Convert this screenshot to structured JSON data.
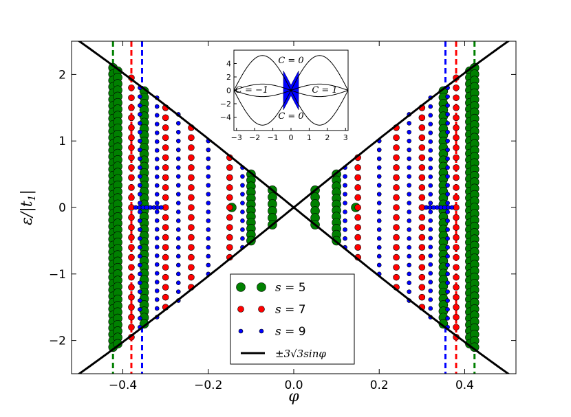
{
  "chart_data": [
    {
      "type": "scatter",
      "title": "",
      "xlabel": "φ",
      "ylabel": "ε/|t1|",
      "xlim": [
        -0.52,
        0.52
      ],
      "ylim": [
        -2.5,
        2.5
      ],
      "xticks": [
        -0.4,
        -0.2,
        0.0,
        0.2,
        0.4
      ],
      "xtick_labels": [
        "−0.4",
        "−0.2",
        "0.0",
        "0.2",
        "0.4"
      ],
      "yticks": [
        -2,
        -1,
        0,
        1,
        2
      ],
      "ytick_labels": [
        "−2",
        "−1",
        "0",
        "1",
        "2"
      ],
      "grid": false,
      "legend_position": "lower-center",
      "series": [
        {
          "name": "s = 5",
          "color": "#008000",
          "marker": "large-circle",
          "columns": [
            {
              "x": -0.423,
              "y_range": [
                -2.1,
                2.1
              ]
            },
            {
              "x": -0.412,
              "y_range": [
                -2.05,
                2.05
              ]
            },
            {
              "x": -0.35,
              "y_range": [
                -1.75,
                1.75
              ]
            },
            {
              "x": -0.1,
              "y_range": [
                -0.5,
                0.5
              ]
            },
            {
              "x": -0.05,
              "y_range": [
                -0.26,
                0.26
              ]
            },
            {
              "x": 0.05,
              "y_range": [
                -0.26,
                0.26
              ]
            },
            {
              "x": 0.1,
              "y_range": [
                -0.5,
                0.5
              ]
            },
            {
              "x": 0.35,
              "y_range": [
                -1.75,
                1.75
              ]
            },
            {
              "x": 0.412,
              "y_range": [
                -2.05,
                2.05
              ]
            },
            {
              "x": 0.423,
              "y_range": [
                -2.1,
                2.1
              ]
            }
          ],
          "isolated_points": [
            {
              "x": -0.145,
              "y": 0
            },
            {
              "x": 0.145,
              "y": 0
            }
          ]
        },
        {
          "name": "s = 7",
          "color": "#ff0000",
          "marker": "medium-circle",
          "columns": [
            {
              "x": -0.38,
              "y_range": [
                -1.95,
                1.95
              ]
            },
            {
              "x": -0.3,
              "y_range": [
                -1.5,
                1.5
              ]
            },
            {
              "x": -0.24,
              "y_range": [
                -1.2,
                1.2
              ]
            },
            {
              "x": -0.15,
              "y_range": [
                -0.75,
                0.75
              ]
            },
            {
              "x": 0.15,
              "y_range": [
                -0.75,
                0.75
              ]
            },
            {
              "x": 0.24,
              "y_range": [
                -1.2,
                1.2
              ]
            },
            {
              "x": 0.3,
              "y_range": [
                -1.5,
                1.5
              ]
            },
            {
              "x": 0.38,
              "y_range": [
                -1.95,
                1.95
              ]
            }
          ]
        },
        {
          "name": "s = 9",
          "color": "#0000ff",
          "marker": "small-circle",
          "columns": [
            {
              "x": -0.36,
              "y_range": [
                -1.8,
                1.8
              ]
            },
            {
              "x": -0.32,
              "y_range": [
                -1.65,
                1.65
              ]
            },
            {
              "x": -0.27,
              "y_range": [
                -1.4,
                1.4
              ]
            },
            {
              "x": -0.2,
              "y_range": [
                -1.0,
                1.0
              ]
            },
            {
              "x": -0.12,
              "y_range": [
                -0.6,
                0.6
              ]
            },
            {
              "x": 0.12,
              "y_range": [
                -0.6,
                0.6
              ]
            },
            {
              "x": 0.2,
              "y_range": [
                -1.0,
                1.0
              ]
            },
            {
              "x": 0.27,
              "y_range": [
                -1.4,
                1.4
              ]
            },
            {
              "x": 0.32,
              "y_range": [
                -1.65,
                1.65
              ]
            },
            {
              "x": 0.36,
              "y_range": [
                -1.8,
                1.8
              ]
            }
          ],
          "horizontal_segments": [
            {
              "x_range": [
                -0.37,
                -0.31
              ],
              "y": 0
            },
            {
              "x_range": [
                0.31,
                0.37
              ],
              "y": 0
            }
          ]
        },
        {
          "name": "±3√3sinφ",
          "color": "#000000",
          "marker": "line",
          "function": "±3√3 sin(φ)"
        }
      ],
      "vertical_dashed_lines": [
        {
          "x": -0.423,
          "color": "#008000"
        },
        {
          "x": -0.38,
          "color": "#ff0000"
        },
        {
          "x": -0.355,
          "color": "#0000ff"
        },
        {
          "x": 0.355,
          "color": "#0000ff"
        },
        {
          "x": 0.38,
          "color": "#ff0000"
        },
        {
          "x": 0.423,
          "color": "#008000"
        }
      ],
      "legend": {
        "entries": [
          {
            "prefix": "s =",
            "value": "5"
          },
          {
            "prefix": "s =",
            "value": "7"
          },
          {
            "prefix": "s =",
            "value": "9"
          },
          {
            "prefix": "",
            "value": "±3√3sinφ"
          }
        ]
      }
    },
    {
      "type": "line",
      "title": "",
      "xlim": [
        -3.1416,
        3.1416
      ],
      "ylim": [
        -6,
        6
      ],
      "xticks": [
        -3,
        -2,
        -1,
        0,
        1,
        2,
        3
      ],
      "xtick_labels": [
        "−3",
        "−2",
        "−1",
        "0",
        "1",
        "2",
        "3"
      ],
      "yticks": [
        -4,
        -2,
        0,
        2,
        4
      ],
      "ytick_labels": [
        "−4",
        "−2",
        "0",
        "2",
        "4"
      ],
      "curves": [
        "±3√3 sin(φ)",
        "±3√3 |sin(φ)|"
      ],
      "fill_region": {
        "x_range": [
          -0.42,
          0.42
        ],
        "color": "#0000ff"
      },
      "annotations": [
        {
          "text": "C = 0",
          "location": "top-center"
        },
        {
          "text": "C = −1",
          "location": "left"
        },
        {
          "text": "C = 1",
          "location": "right"
        },
        {
          "text": "C = 0",
          "location": "bottom-center"
        }
      ]
    }
  ]
}
